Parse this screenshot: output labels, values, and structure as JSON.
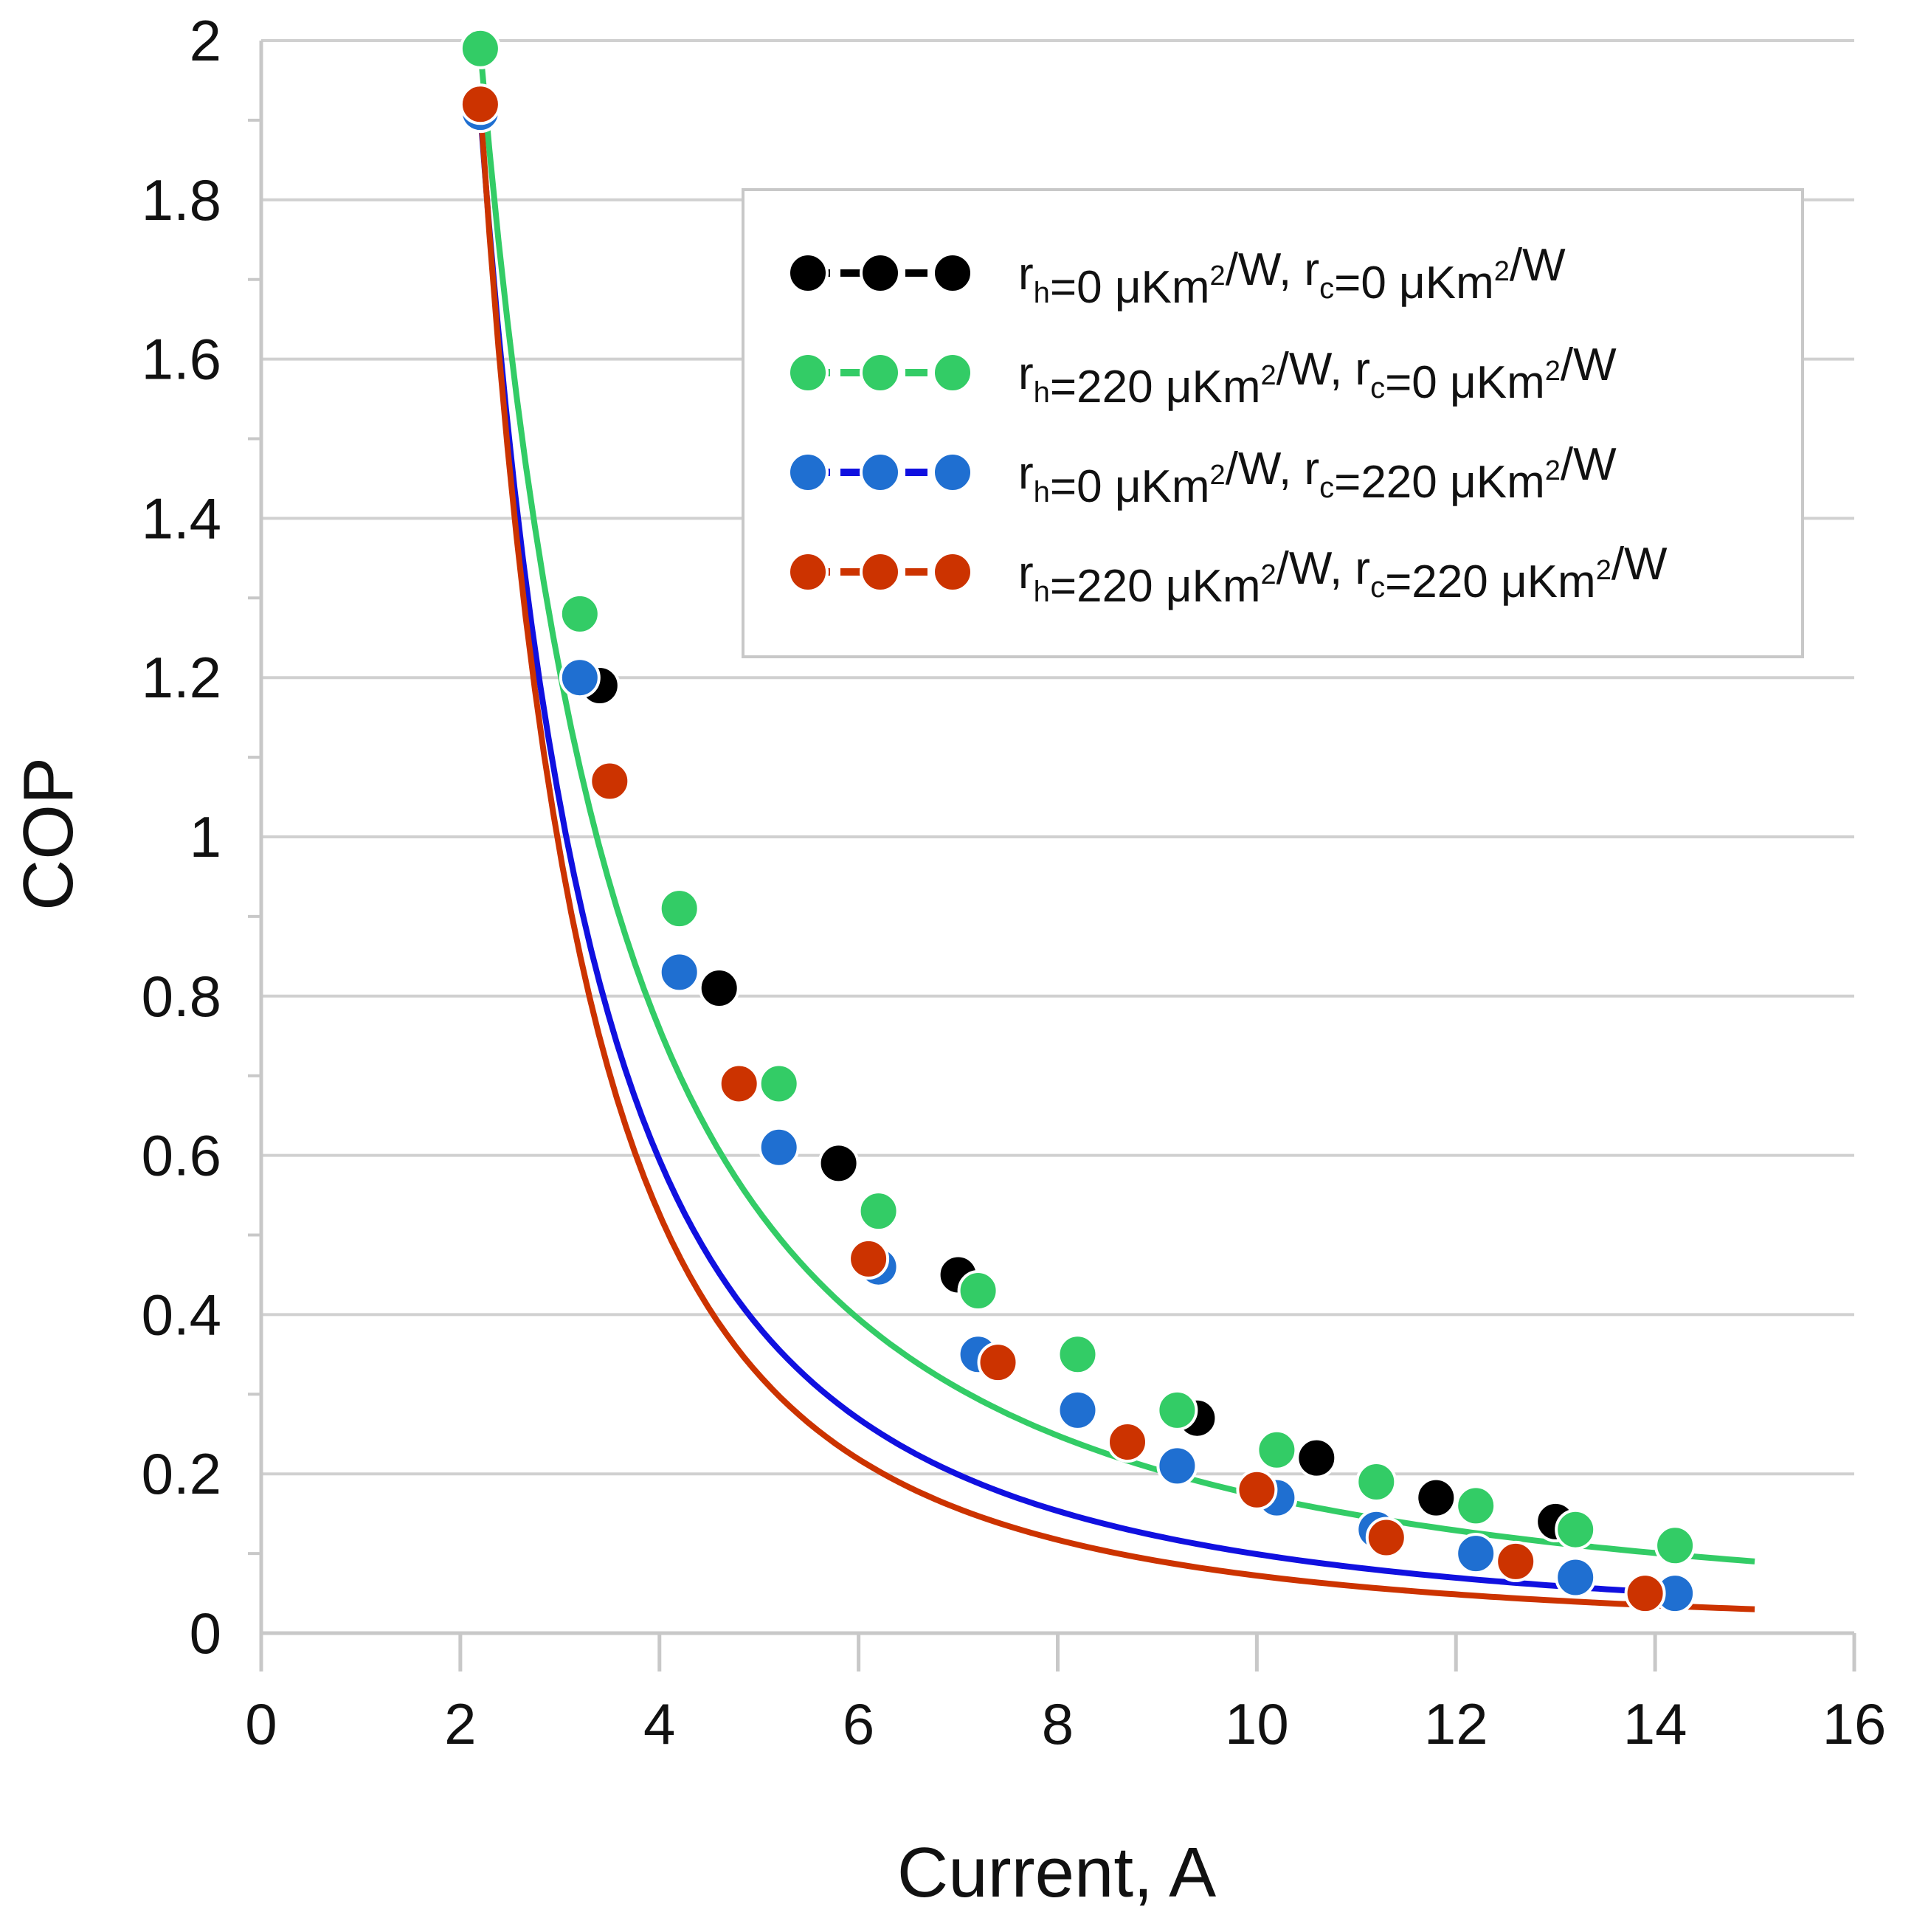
{
  "chart_data": {
    "type": "line",
    "title": "",
    "xlabel": "Current, A",
    "ylabel": "COP",
    "xlim": [
      0,
      16
    ],
    "ylim": [
      0,
      2
    ],
    "x_ticks": [
      "0",
      "2",
      "4",
      "6",
      "8",
      "10",
      "12",
      "14",
      "16"
    ],
    "y_ticks": [
      "0",
      "0.2",
      "0.4",
      "0.6",
      "0.8",
      "1",
      "1.2",
      "1.4",
      "1.6",
      "1.8",
      "2"
    ],
    "grid": "horizontal",
    "legend_position": "top-right",
    "series": [
      {
        "name": "rh=0 μKm2/W, rc=0 μKm2/W",
        "legend": {
          "r1": "r",
          "s1": "h",
          "t1": "=0 μKm",
          "e1": "2",
          "u1": "/W, r",
          "s2": "c",
          "t2": "=0 μKm",
          "e2": "2",
          "u2": "/W"
        },
        "color": "#000000",
        "x": [
          2.2,
          3.4,
          4.6,
          5.8,
          7.0,
          8.2,
          9.4,
          10.6,
          11.8,
          13.0,
          14.2
        ],
        "y": [
          1.91,
          1.19,
          0.81,
          0.59,
          0.45,
          0.35,
          0.27,
          0.22,
          0.17,
          0.14,
          0.11
        ]
      },
      {
        "name": "rh=220 μKm2/W, rc=0 μKm2/W",
        "legend": {
          "r1": "r",
          "s1": "h",
          "t1": "=220 μKm",
          "e1": "2",
          "u1": "/W, r",
          "s2": "c",
          "t2": "=0 μKm",
          "e2": "2",
          "u2": "/W"
        },
        "color": "#33cc66",
        "x": [
          2.2,
          3.2,
          4.2,
          5.2,
          6.2,
          7.2,
          8.2,
          9.2,
          10.2,
          11.2,
          12.2,
          13.2,
          14.2
        ],
        "y": [
          1.99,
          1.28,
          0.91,
          0.69,
          0.53,
          0.43,
          0.35,
          0.28,
          0.23,
          0.19,
          0.16,
          0.13,
          0.11
        ],
        "fit_y_at_15": 0.09
      },
      {
        "name": "rh=0 μKm2/W, rc=220 μKm2/W",
        "legend": {
          "r1": "r",
          "s1": "h",
          "t1": "=0 μKm",
          "e1": "2",
          "u1": "/W, r",
          "s2": "c",
          "t2": "=220 μKm",
          "e2": "2",
          "u2": "/W"
        },
        "color": "#1f6fd1",
        "line_color": "#1010e0",
        "x": [
          2.2,
          3.2,
          4.2,
          5.2,
          6.2,
          7.2,
          8.2,
          9.2,
          10.2,
          11.2,
          12.2,
          13.2,
          14.2
        ],
        "y": [
          1.91,
          1.2,
          0.83,
          0.61,
          0.46,
          0.35,
          0.28,
          0.21,
          0.17,
          0.13,
          0.1,
          0.07,
          0.05
        ]
      },
      {
        "name": "rh=220 μKm2/W, rc=220 μKm2/W",
        "legend": {
          "r1": "r",
          "s1": "h",
          "t1": "=220 μKm",
          "e1": "2",
          "u1": "/W, r",
          "s2": "c",
          "t2": "=220 μKm",
          "e2": "2",
          "u2": "/W"
        },
        "color": "#cc3300",
        "x": [
          2.2,
          3.5,
          4.8,
          6.1,
          7.4,
          8.7,
          10.0,
          11.3,
          12.6,
          13.9
        ],
        "y": [
          1.92,
          1.07,
          0.69,
          0.47,
          0.34,
          0.24,
          0.18,
          0.12,
          0.09,
          0.05
        ],
        "fit_y_at_15": 0.03
      }
    ]
  }
}
